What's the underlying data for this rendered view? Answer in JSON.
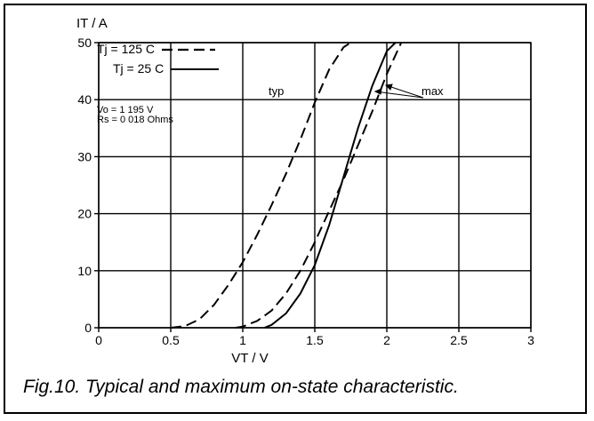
{
  "caption": "Fig.10.  Typical and maximum on-state characteristic.",
  "chart_data": {
    "type": "line",
    "ylabel": "IT / A",
    "xlabel": "VT / V",
    "xlim": [
      0,
      3
    ],
    "ylim": [
      0,
      50
    ],
    "xticks": [
      "0",
      "0.5",
      "1",
      "1.5",
      "2",
      "2.5",
      "3"
    ],
    "yticks": [
      "0",
      "10",
      "20",
      "30",
      "40",
      "50"
    ],
    "grid": true,
    "legend": {
      "placement": "top-left",
      "entries": [
        {
          "label": "Tj = 125 C",
          "style": "dashed"
        },
        {
          "label": "Tj = 25 C",
          "style": "solid"
        }
      ]
    },
    "annotations": {
      "params": [
        "Vo = 1 195 V",
        "Rs = 0 018 Ohms"
      ],
      "typ": "typ",
      "max": "max"
    },
    "series": [
      {
        "name": "Tj = 125 C",
        "group": "typ",
        "style": "dashed",
        "x": [
          0.5,
          0.6,
          0.7,
          0.8,
          0.9,
          1.0,
          1.1,
          1.2,
          1.3,
          1.4,
          1.5,
          1.6,
          1.7,
          1.75
        ],
        "y": [
          0,
          0.3,
          1.5,
          4.0,
          7.5,
          11.5,
          16.3,
          21.5,
          27.0,
          33.0,
          39.5,
          45.3,
          49.2,
          50
        ]
      },
      {
        "name": "Tj = 125 C",
        "group": "max",
        "style": "dashed",
        "x": [
          0.95,
          1.0,
          1.1,
          1.2,
          1.3,
          1.4,
          1.5,
          1.6,
          1.7,
          1.8,
          1.9,
          2.0,
          2.1
        ],
        "y": [
          0,
          0.2,
          1.2,
          3.0,
          6.0,
          10.0,
          15.0,
          20.5,
          26.0,
          32.0,
          38.0,
          44.5,
          50
        ]
      },
      {
        "name": "Tj = 25 C",
        "group": "max",
        "style": "solid",
        "x": [
          1.15,
          1.2,
          1.3,
          1.4,
          1.5,
          1.6,
          1.7,
          1.8,
          1.9,
          2.0,
          2.06
        ],
        "y": [
          0,
          0.5,
          2.5,
          6.0,
          11.0,
          18.0,
          26.5,
          35.0,
          42.5,
          48.5,
          50
        ]
      }
    ]
  }
}
